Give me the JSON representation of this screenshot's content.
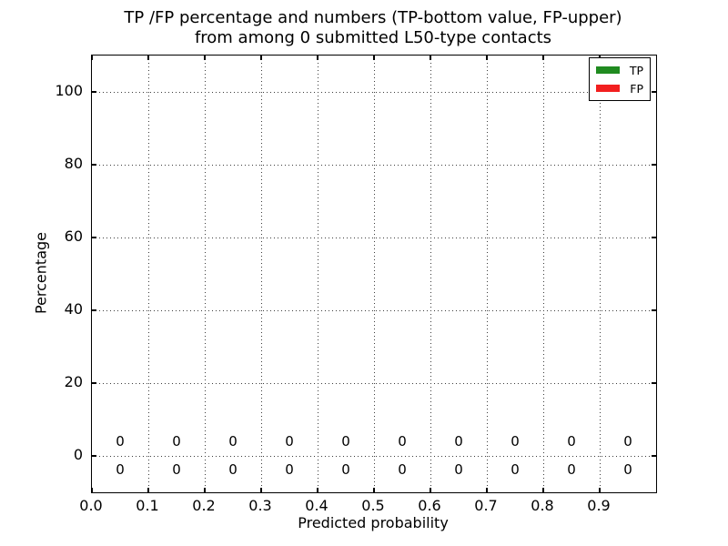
{
  "figure": {
    "title_line1": "TP /FP percentage and numbers (TP-bottom value, FP-upper)",
    "title_line2": "from among 0 submitted L50-type contacts"
  },
  "axes": {
    "xlabel": "Predicted probability",
    "ylabel": "Percentage",
    "xlim": [
      0.0,
      1.0
    ],
    "ylim": [
      -10,
      110
    ],
    "x_ticks": [
      {
        "value": 0.0,
        "label": "0.0"
      },
      {
        "value": 0.1,
        "label": "0.1"
      },
      {
        "value": 0.2,
        "label": "0.2"
      },
      {
        "value": 0.3,
        "label": "0.3"
      },
      {
        "value": 0.4,
        "label": "0.4"
      },
      {
        "value": 0.5,
        "label": "0.5"
      },
      {
        "value": 0.6,
        "label": "0.6"
      },
      {
        "value": 0.7,
        "label": "0.7"
      },
      {
        "value": 0.8,
        "label": "0.8"
      },
      {
        "value": 0.9,
        "label": "0.9"
      }
    ],
    "y_ticks": [
      {
        "value": 0,
        "label": "0"
      },
      {
        "value": 20,
        "label": "20"
      },
      {
        "value": 40,
        "label": "40"
      },
      {
        "value": 60,
        "label": "60"
      },
      {
        "value": 80,
        "label": "80"
      },
      {
        "value": 100,
        "label": "100"
      }
    ],
    "grid_style": "dotted"
  },
  "legend": {
    "position": "upper right",
    "entries": [
      {
        "label": "TP",
        "color": "#208b20"
      },
      {
        "label": "FP",
        "color": "#f21f1f"
      }
    ]
  },
  "chart_data": {
    "type": "bar",
    "title": "TP /FP percentage and numbers (TP-bottom value, FP-upper) from among 0 submitted L50-type contacts",
    "xlabel": "Predicted probability",
    "ylabel": "Percentage",
    "xlim": [
      0.0,
      1.0
    ],
    "ylim": [
      -10,
      110
    ],
    "grid": true,
    "legend_position": "upper right",
    "total_submitted_contacts": 0,
    "bin_centers": [
      0.05,
      0.15,
      0.25,
      0.35,
      0.45,
      0.55,
      0.65,
      0.75,
      0.85,
      0.95
    ],
    "series": [
      {
        "name": "TP",
        "color": "#208b20",
        "values": [
          0,
          0,
          0,
          0,
          0,
          0,
          0,
          0,
          0,
          0
        ]
      },
      {
        "name": "FP",
        "color": "#f21f1f",
        "values": [
          0,
          0,
          0,
          0,
          0,
          0,
          0,
          0,
          0,
          0
        ]
      }
    ],
    "value_labels": {
      "fp_upper_row": [
        "0",
        "0",
        "0",
        "0",
        "0",
        "0",
        "0",
        "0",
        "0",
        "0"
      ],
      "tp_lower_row": [
        "0",
        "0",
        "0",
        "0",
        "0",
        "0",
        "0",
        "0",
        "0",
        "0"
      ]
    }
  }
}
